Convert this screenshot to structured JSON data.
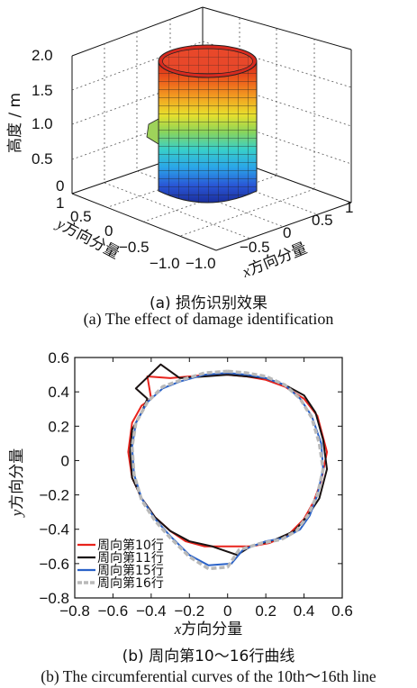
{
  "figure_a": {
    "caption_cn": "(a)  损伤识别效果",
    "caption_en": "(a)  The effect of damage identification",
    "z_label": "高度 / m",
    "x_label_prefix": "x",
    "x_label_suffix": "方向分量",
    "y_label_prefix": "y",
    "y_label_suffix": "方向分量",
    "z_ticks": [
      "2.0",
      "1.5",
      "1.0",
      "0.5",
      "0"
    ],
    "x_ticks": [
      "−1.0",
      "−0.5",
      "0",
      "0.5",
      "1"
    ],
    "y_ticks": [
      "1",
      "0.5",
      "0",
      "−0.5",
      "−1.0"
    ]
  },
  "figure_b": {
    "caption_cn": "(b)  周向第10～16行曲线",
    "caption_en": "(b) The circumferential curves of the 10th～16th line",
    "x_label_prefix": "x",
    "x_label_suffix": "方向分量",
    "y_label_prefix": "y",
    "y_label_suffix": "方向分量"
  },
  "chart_data": [
    {
      "type": "surface",
      "zlim": [
        0,
        2.0
      ],
      "xlim": [
        -1.0,
        1.0
      ],
      "ylim": [
        -1.0,
        1.0
      ],
      "colormap": "jet (blue bottom to red top)",
      "grid": true
    },
    {
      "type": "line",
      "xlim": [
        -0.8,
        0.6
      ],
      "ylim": [
        -0.8,
        0.6
      ],
      "x_ticks": [
        "−0.8",
        "−0.6",
        "−0.4",
        "−0.2",
        "0",
        "0.2",
        "0.4",
        "0.6"
      ],
      "y_ticks": [
        "0.6",
        "0.4",
        "0.2",
        "0",
        "−0.2",
        "−0.4",
        "−0.6",
        "−0.8"
      ],
      "legend_position": "bottom-left",
      "series": [
        {
          "name": "周向第10行",
          "color": "#e8231c",
          "style": "solid",
          "x": [
            0.0,
            0.1,
            0.2,
            0.3,
            0.4,
            0.47,
            0.52,
            0.49,
            0.45,
            0.4,
            0.32,
            0.22,
            0.12,
            0.0,
            -0.12,
            -0.22,
            -0.3,
            -0.38,
            -0.45,
            -0.5,
            -0.52,
            -0.5,
            -0.45,
            -0.4,
            -0.42,
            -0.3,
            -0.2,
            -0.1,
            0.0
          ],
          "y": [
            0.5,
            0.49,
            0.47,
            0.43,
            0.36,
            0.26,
            0.05,
            -0.12,
            -0.24,
            -0.34,
            -0.43,
            -0.48,
            -0.5,
            -0.5,
            -0.5,
            -0.47,
            -0.41,
            -0.33,
            -0.22,
            -0.1,
            0.05,
            0.22,
            0.32,
            0.36,
            0.49,
            0.48,
            0.49,
            0.5,
            0.5
          ]
        },
        {
          "name": "周向第11行",
          "color": "#1a1212",
          "style": "solid",
          "x": [
            0.0,
            0.1,
            0.2,
            0.3,
            0.4,
            0.46,
            0.5,
            0.52,
            0.48,
            0.42,
            0.35,
            0.25,
            0.12,
            0.05,
            -0.08,
            -0.2,
            -0.3,
            -0.38,
            -0.45,
            -0.5,
            -0.51,
            -0.5,
            -0.45,
            -0.42,
            -0.48,
            -0.35,
            -0.25,
            -0.12,
            0.0
          ],
          "y": [
            0.5,
            0.49,
            0.48,
            0.44,
            0.38,
            0.28,
            0.12,
            -0.05,
            -0.22,
            -0.32,
            -0.41,
            -0.46,
            -0.5,
            -0.55,
            -0.5,
            -0.47,
            -0.41,
            -0.33,
            -0.22,
            -0.1,
            0.05,
            0.18,
            0.28,
            0.36,
            0.42,
            0.56,
            0.48,
            0.49,
            0.5
          ]
        },
        {
          "name": "周向第15行",
          "color": "#2a62c8",
          "style": "solid",
          "x": [
            0.0,
            0.1,
            0.2,
            0.3,
            0.38,
            0.44,
            0.49,
            0.5,
            0.47,
            0.43,
            0.38,
            0.3,
            0.2,
            0.08,
            0.02,
            -0.1,
            -0.2,
            -0.3,
            -0.38,
            -0.45,
            -0.49,
            -0.5,
            -0.48,
            -0.42,
            -0.34,
            -0.25,
            -0.12,
            0.0
          ],
          "y": [
            0.51,
            0.5,
            0.48,
            0.44,
            0.36,
            0.26,
            0.1,
            -0.05,
            -0.2,
            -0.32,
            -0.4,
            -0.45,
            -0.47,
            -0.52,
            -0.6,
            -0.61,
            -0.55,
            -0.44,
            -0.34,
            -0.22,
            -0.08,
            0.08,
            0.22,
            0.34,
            0.42,
            0.46,
            0.5,
            0.51
          ]
        },
        {
          "name": "周向第16行",
          "color": "#b9b9b9",
          "style": "dashed",
          "x": [
            0.0,
            0.1,
            0.2,
            0.3,
            0.38,
            0.44,
            0.48,
            0.5,
            0.47,
            0.42,
            0.36,
            0.28,
            0.18,
            0.06,
            0.0,
            -0.1,
            -0.2,
            -0.3,
            -0.38,
            -0.45,
            -0.49,
            -0.5,
            -0.48,
            -0.42,
            -0.34,
            -0.24,
            -0.12,
            0.0
          ],
          "y": [
            0.52,
            0.51,
            0.49,
            0.44,
            0.36,
            0.25,
            0.1,
            -0.05,
            -0.2,
            -0.32,
            -0.41,
            -0.46,
            -0.48,
            -0.52,
            -0.62,
            -0.63,
            -0.56,
            -0.45,
            -0.35,
            -0.23,
            -0.08,
            0.08,
            0.22,
            0.34,
            0.43,
            0.47,
            0.51,
            0.52
          ]
        }
      ]
    }
  ]
}
